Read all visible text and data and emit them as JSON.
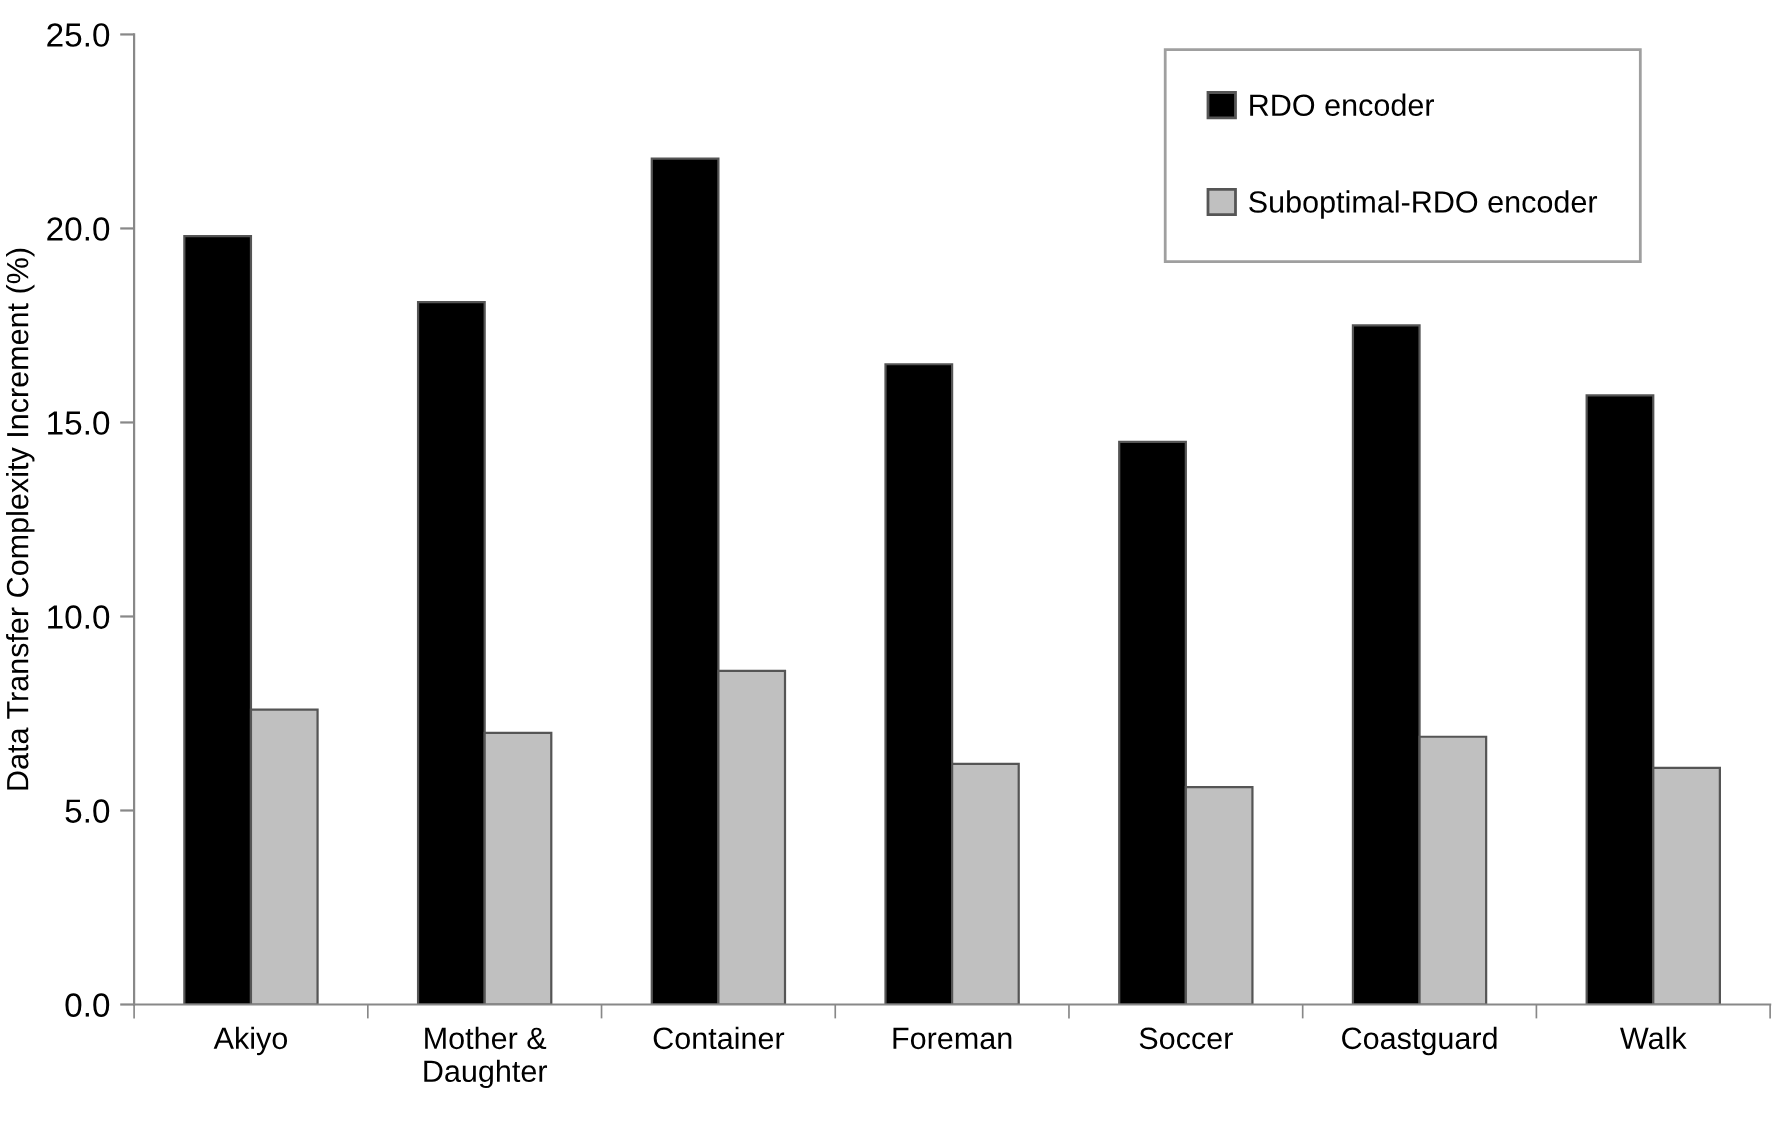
{
  "chart_data": {
    "type": "bar",
    "ylabel": "Data Transfer Complexity Increment (%)",
    "categories": [
      "Akiyo",
      "Mother &\nDaughter",
      "Container",
      "Foreman",
      "Soccer",
      "Coastguard",
      "Walk"
    ],
    "series": [
      {
        "name": "RDO encoder",
        "color": "#000000",
        "values": [
          19.8,
          18.1,
          21.8,
          16.5,
          14.5,
          17.5,
          15.7
        ]
      },
      {
        "name": "Suboptimal-RDO encoder",
        "color": "#c0c0c0",
        "values": [
          7.6,
          7.0,
          8.6,
          6.2,
          5.6,
          6.9,
          6.1
        ]
      }
    ],
    "ylim": [
      0,
      25
    ],
    "yticks": [
      {
        "value": 0,
        "label": "0.0"
      },
      {
        "value": 5,
        "label": "5.0"
      },
      {
        "value": 10,
        "label": "10.0"
      },
      {
        "value": 15,
        "label": "15.0"
      },
      {
        "value": 20,
        "label": "20.0"
      },
      {
        "value": 25,
        "label": "25.0"
      }
    ],
    "grid": false,
    "legend": "top right"
  }
}
